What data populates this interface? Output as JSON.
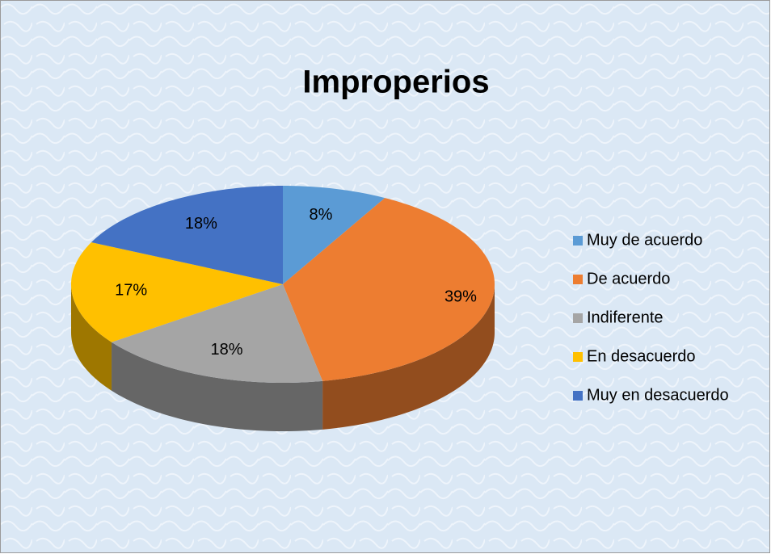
{
  "chart_data": {
    "type": "pie",
    "title": "Improperios",
    "categories": [
      "Muy de acuerdo",
      "De acuerdo",
      "Indiferente",
      "En desacuerdo",
      "Muy en desacuerdo"
    ],
    "values": [
      8,
      39,
      18,
      17,
      18
    ],
    "value_labels": [
      "8%",
      "39%",
      "18%",
      "17%",
      "18%"
    ],
    "colors": [
      "#5b9bd5",
      "#ed7d31",
      "#a5a5a5",
      "#ffc000",
      "#4472c4"
    ],
    "legend": "right"
  }
}
